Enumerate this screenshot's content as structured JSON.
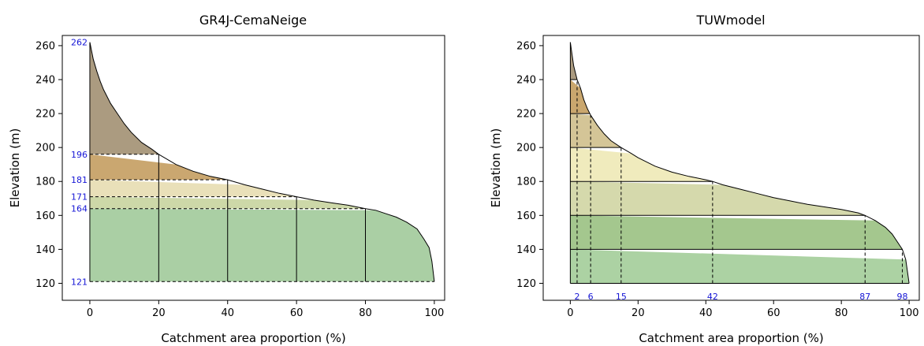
{
  "chart_data": [
    {
      "type": "area",
      "title": "GR4J-CemaNeige",
      "xlabel": "Catchment area proportion (%)",
      "ylabel": "Elevation (m)",
      "xlim": [
        -8,
        103
      ],
      "ylim": [
        110,
        266
      ],
      "xticks": [
        0,
        20,
        40,
        60,
        80,
        100
      ],
      "yticks": [
        120,
        140,
        160,
        180,
        200,
        220,
        240,
        260
      ],
      "hypsometric_curve": {
        "x": [
          0,
          0.5,
          1,
          2,
          3,
          4,
          5,
          6,
          8,
          10,
          12,
          15,
          18,
          20,
          25,
          30,
          35,
          40,
          45,
          50,
          55,
          60,
          65,
          70,
          75,
          80,
          83,
          86,
          89,
          92,
          95,
          97,
          98.5,
          99.3,
          100
        ],
        "y": [
          262,
          257,
          252,
          245,
          239,
          234,
          230,
          226,
          220,
          214,
          209,
          203,
          199,
          196,
          190,
          186,
          183,
          181,
          178,
          175.5,
          173,
          171,
          169,
          167.5,
          166,
          164,
          163,
          161,
          159,
          156,
          152,
          146,
          141,
          133,
          121
        ]
      },
      "elevation_bands": [
        {
          "low": 196,
          "high": 262,
          "color": "#ab9b80"
        },
        {
          "low": 181,
          "high": 196,
          "color": "#caa770"
        },
        {
          "low": 171,
          "high": 181,
          "color": "#e9e0b9"
        },
        {
          "low": 164,
          "high": 171,
          "color": "#cdd8a8"
        },
        {
          "low": 121,
          "high": 164,
          "color": "#aacfa4"
        }
      ],
      "band_boundaries": [
        196,
        181,
        171,
        164,
        121
      ],
      "band_boundary_labels": [
        "262",
        "196",
        "181",
        "171",
        "164",
        "121"
      ],
      "area_quantile_lines": [
        20,
        40,
        60,
        80
      ]
    },
    {
      "type": "area",
      "title": "TUWmodel",
      "xlabel": "Catchment area proportion (%)",
      "ylabel": "Elevation (m)",
      "xlim": [
        -8,
        103
      ],
      "ylim": [
        110,
        266
      ],
      "xticks": [
        0,
        20,
        40,
        60,
        80,
        100
      ],
      "yticks": [
        120,
        140,
        160,
        180,
        200,
        220,
        240,
        260
      ],
      "hypsometric_curve": {
        "x": [
          0,
          0.5,
          1,
          2,
          3,
          4,
          5,
          6,
          8,
          10,
          12,
          15,
          18,
          20,
          25,
          30,
          35,
          40,
          42,
          45,
          50,
          55,
          60,
          65,
          70,
          75,
          80,
          85,
          87,
          90,
          93,
          95,
          97,
          98,
          99,
          99.5,
          100
        ],
        "y": [
          262,
          255,
          248,
          240,
          235,
          228,
          223,
          219,
          213,
          208,
          204,
          200,
          196.5,
          194,
          189,
          185.5,
          183,
          181,
          180,
          178,
          175.5,
          173,
          170.5,
          168.5,
          166.5,
          165,
          163.5,
          161.5,
          160,
          157,
          153,
          149,
          143,
          140,
          134,
          127,
          120
        ]
      },
      "elevation_bands": [
        {
          "low": 240,
          "high": 262,
          "color": "#ab9b80"
        },
        {
          "low": 220,
          "high": 240,
          "color": "#caa76e"
        },
        {
          "low": 200,
          "high": 220,
          "color": "#d4c597"
        },
        {
          "low": 180,
          "high": 200,
          "color": "#f0ebbd"
        },
        {
          "low": 160,
          "high": 180,
          "color": "#d5d9ac"
        },
        {
          "low": 140,
          "high": 160,
          "color": "#a4c78e"
        },
        {
          "low": 120,
          "high": 140,
          "color": "#acd2a3"
        }
      ],
      "band_boundaries": [
        240,
        220,
        200,
        180,
        160,
        140,
        120
      ],
      "band_crossing_x": [
        2,
        6,
        15,
        42,
        87,
        98
      ],
      "band_crossing_labels": [
        "2",
        "6",
        "15",
        "42",
        "87",
        "98"
      ]
    }
  ]
}
